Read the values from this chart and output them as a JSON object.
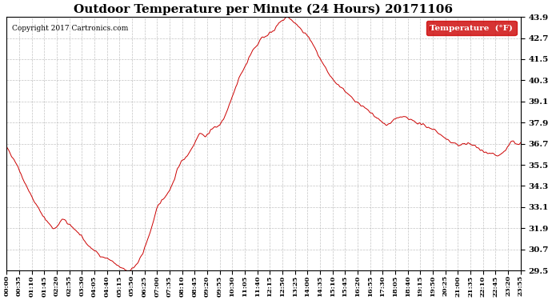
{
  "title": "Outdoor Temperature per Minute (24 Hours) 20171106",
  "copyright_text": "Copyright 2017 Cartronics.com",
  "legend_label": "Temperature  (°F)",
  "line_color": "#cc0000",
  "background_color": "#ffffff",
  "grid_color": "#aaaaaa",
  "ylim": [
    29.5,
    43.9
  ],
  "yticks": [
    29.5,
    30.7,
    31.9,
    33.1,
    34.3,
    35.5,
    36.7,
    37.9,
    39.1,
    40.3,
    41.5,
    42.7,
    43.9
  ],
  "xtick_labels": [
    "00:00",
    "00:35",
    "01:10",
    "01:45",
    "02:20",
    "02:55",
    "03:30",
    "04:05",
    "04:40",
    "05:15",
    "05:50",
    "06:25",
    "07:00",
    "07:35",
    "08:10",
    "08:45",
    "09:20",
    "09:55",
    "10:30",
    "11:05",
    "11:40",
    "12:15",
    "12:50",
    "13:25",
    "14:00",
    "14:35",
    "15:10",
    "15:45",
    "16:20",
    "16:55",
    "17:30",
    "18:05",
    "18:40",
    "19:15",
    "19:50",
    "20:25",
    "21:00",
    "21:35",
    "22:10",
    "22:45",
    "23:20",
    "23:55"
  ],
  "temperature_data": [
    36.5,
    36.1,
    35.7,
    35.2,
    34.6,
    34.1,
    33.6,
    33.2,
    32.8,
    32.4,
    32.1,
    31.9,
    32.1,
    32.4,
    32.2,
    32.0,
    31.8,
    31.5,
    31.2,
    30.9,
    30.7,
    30.5,
    30.3,
    30.2,
    30.1,
    29.9,
    29.7,
    29.6,
    29.5,
    29.6,
    29.8,
    30.2,
    30.8,
    31.5,
    32.3,
    33.1,
    33.5,
    33.8,
    34.2,
    34.8,
    35.5,
    35.8,
    36.1,
    36.5,
    37.0,
    37.3,
    37.1,
    37.4,
    37.6,
    37.7,
    38.0,
    38.5,
    39.2,
    39.9,
    40.5,
    41.0,
    41.5,
    42.0,
    42.3,
    42.7,
    42.8,
    43.0,
    43.2,
    43.5,
    43.7,
    43.9,
    43.7,
    43.5,
    43.2,
    43.0,
    42.7,
    42.3,
    41.8,
    41.3,
    40.9,
    40.5,
    40.2,
    40.0,
    39.8,
    39.5,
    39.3,
    39.1,
    38.9,
    38.7,
    38.5,
    38.3,
    38.1,
    37.9,
    37.8,
    37.9,
    38.1,
    38.2,
    38.2,
    38.1,
    38.0,
    37.9,
    37.8,
    37.7,
    37.6,
    37.5,
    37.3,
    37.1,
    36.9,
    36.8,
    36.7,
    36.6,
    36.7,
    36.7,
    36.6,
    36.5,
    36.3,
    36.2,
    36.2,
    36.1,
    36.0,
    36.2,
    36.5,
    36.8,
    36.7,
    36.7
  ]
}
